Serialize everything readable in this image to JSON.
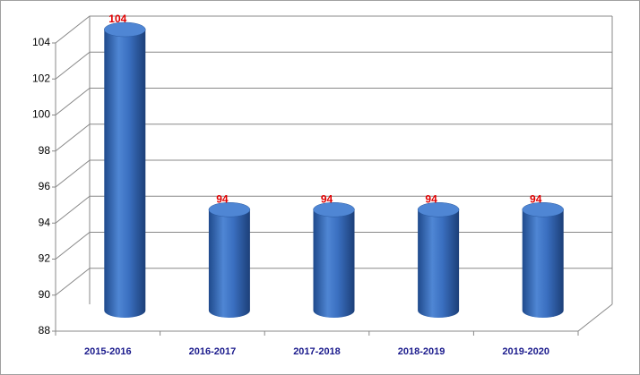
{
  "chart_data": {
    "type": "bar3d",
    "categories": [
      "2015-2016",
      "2016-2017",
      "2017-2018",
      "2018-2019",
      "2019-2020"
    ],
    "values": [
      104,
      94,
      94,
      94,
      94
    ],
    "color": "#3a6fc0",
    "label_color": "#e00000",
    "ylim": [
      88,
      104
    ],
    "yticks": [
      88,
      90,
      92,
      94,
      96,
      98,
      100,
      102,
      104
    ],
    "grid": true
  }
}
